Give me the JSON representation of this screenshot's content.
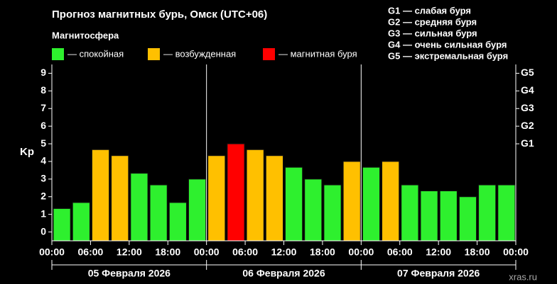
{
  "chart_data": {
    "type": "bar",
    "title": "Прогноз магнитных бурь, Омск (UTC+06)",
    "subtitle": "Магнитосфера",
    "legend": [
      {
        "label": "— спокойная",
        "color": "#2ef02e"
      },
      {
        "label": "— возбужденная",
        "color": "#ffc000"
      },
      {
        "label": "— магнитная буря",
        "color": "#ff0000"
      }
    ],
    "g_scale": [
      "G1 — слабая буря",
      "G2 — средняя буря",
      "G3 — сильная буря",
      "G4 — очень сильная буря",
      "G5 — экстремальная буря"
    ],
    "y_label": "Kp",
    "x": [
      0,
      3,
      6,
      9,
      12,
      15,
      18,
      21,
      24,
      27,
      30,
      33,
      36,
      39,
      42,
      45,
      48,
      51,
      54,
      57,
      60,
      63,
      66,
      69
    ],
    "bar_width": 3,
    "values": [
      1.33,
      1.67,
      4.67,
      4.33,
      3.33,
      2.67,
      1.67,
      3.0,
      4.33,
      5.0,
      4.67,
      4.33,
      3.67,
      3.0,
      2.67,
      4.0,
      3.67,
      4.0,
      2.67,
      2.33,
      2.33,
      2.0,
      2.67,
      2.67
    ],
    "colors": [
      "#2ef02e",
      "#2ef02e",
      "#ffc000",
      "#ffc000",
      "#2ef02e",
      "#2ef02e",
      "#2ef02e",
      "#2ef02e",
      "#ffc000",
      "#ff0000",
      "#ffc000",
      "#ffc000",
      "#2ef02e",
      "#2ef02e",
      "#2ef02e",
      "#ffc000",
      "#2ef02e",
      "#ffc000",
      "#2ef02e",
      "#2ef02e",
      "#2ef02e",
      "#2ef02e",
      "#2ef02e",
      "#2ef02e"
    ],
    "xlim": [
      0,
      72
    ],
    "xticks": [
      {
        "value": 0,
        "label": "00:00"
      },
      {
        "value": 6,
        "label": "06:00"
      },
      {
        "value": 12,
        "label": "12:00"
      },
      {
        "value": 18,
        "label": "18:00"
      },
      {
        "value": 24,
        "label": "00:00"
      },
      {
        "value": 30,
        "label": "06:00"
      },
      {
        "value": 36,
        "label": "12:00"
      },
      {
        "value": 42,
        "label": "18:00"
      },
      {
        "value": 48,
        "label": "00:00"
      },
      {
        "value": 54,
        "label": "06:00"
      },
      {
        "value": 60,
        "label": "12:00"
      },
      {
        "value": 66,
        "label": "18:00"
      },
      {
        "value": 72,
        "label": "00:00"
      }
    ],
    "day_bounds": [
      0,
      24,
      48,
      72
    ],
    "day_labels": [
      "05 Февраля 2026",
      "06 Февраля 2026",
      "07 Февраля 2026"
    ],
    "ylim": [
      -0.5,
      9.5
    ],
    "yticks": [
      0,
      1,
      2,
      3,
      4,
      5,
      6,
      7,
      8,
      9
    ],
    "y2lim": [
      -0.5,
      9.5
    ],
    "y2ticks": [
      {
        "value": 5,
        "label": "G1"
      },
      {
        "value": 6,
        "label": "G2"
      },
      {
        "value": 7,
        "label": "G3"
      },
      {
        "value": 8,
        "label": "G4"
      },
      {
        "value": 9,
        "label": "G5"
      }
    ],
    "watermark": "xras.ru"
  }
}
